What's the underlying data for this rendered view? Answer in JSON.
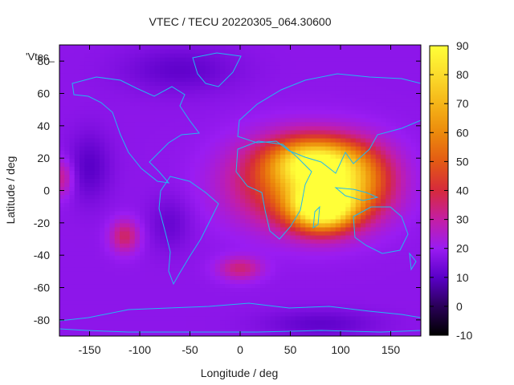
{
  "chart_data": {
    "type": "heatmap",
    "title": "VTEC / TECU 20220305_064.30600",
    "xlabel": "Longitude / deg",
    "ylabel": "Latitude / deg",
    "key_label": "'Vtec_",
    "xlim": [
      -180,
      180
    ],
    "ylim": [
      -90,
      90
    ],
    "x_ticks": [
      -150,
      -100,
      -50,
      0,
      50,
      100,
      150
    ],
    "y_ticks": [
      -80,
      -60,
      -40,
      -20,
      0,
      20,
      40,
      60,
      80
    ],
    "colorbar": {
      "min": -10,
      "max": 90,
      "ticks": [
        -10,
        0,
        10,
        20,
        30,
        40,
        50,
        60,
        70,
        80,
        90
      ]
    },
    "grid_resolution": {
      "lon_step": 5,
      "lat_step": 2.5
    },
    "background_vtec": 18,
    "features": [
      {
        "lon": 82,
        "lat": -10,
        "sigma_lon": 22,
        "sigma_lat": 10,
        "value": 72
      },
      {
        "lon": 75,
        "lat": 18,
        "sigma_lon": 30,
        "sigma_lat": 10,
        "value": 50
      },
      {
        "lon": 60,
        "lat": 5,
        "sigma_lon": 45,
        "sigma_lat": 18,
        "value": 38
      },
      {
        "lon": 120,
        "lat": 5,
        "sigma_lon": 25,
        "sigma_lat": 15,
        "value": 28
      },
      {
        "lon": -115,
        "lat": -28,
        "sigma_lon": 10,
        "sigma_lat": 7,
        "value": 18
      },
      {
        "lon": 0,
        "lat": -48,
        "sigma_lon": 15,
        "sigma_lat": 5,
        "value": 16
      },
      {
        "lon": -178,
        "lat": 8,
        "sigma_lon": 8,
        "sigma_lat": 8,
        "value": 14
      },
      {
        "lon": -150,
        "lat": 15,
        "sigma_lon": 15,
        "sigma_lat": 15,
        "value": -8
      },
      {
        "lon": -70,
        "lat": -20,
        "sigma_lon": 15,
        "sigma_lat": 12,
        "value": -6
      },
      {
        "lon": -60,
        "lat": 75,
        "sigma_lon": 40,
        "sigma_lat": 10,
        "value": -7
      },
      {
        "lon": 80,
        "lat": -82,
        "sigma_lon": 40,
        "sigma_lat": 6,
        "value": -7
      }
    ]
  }
}
